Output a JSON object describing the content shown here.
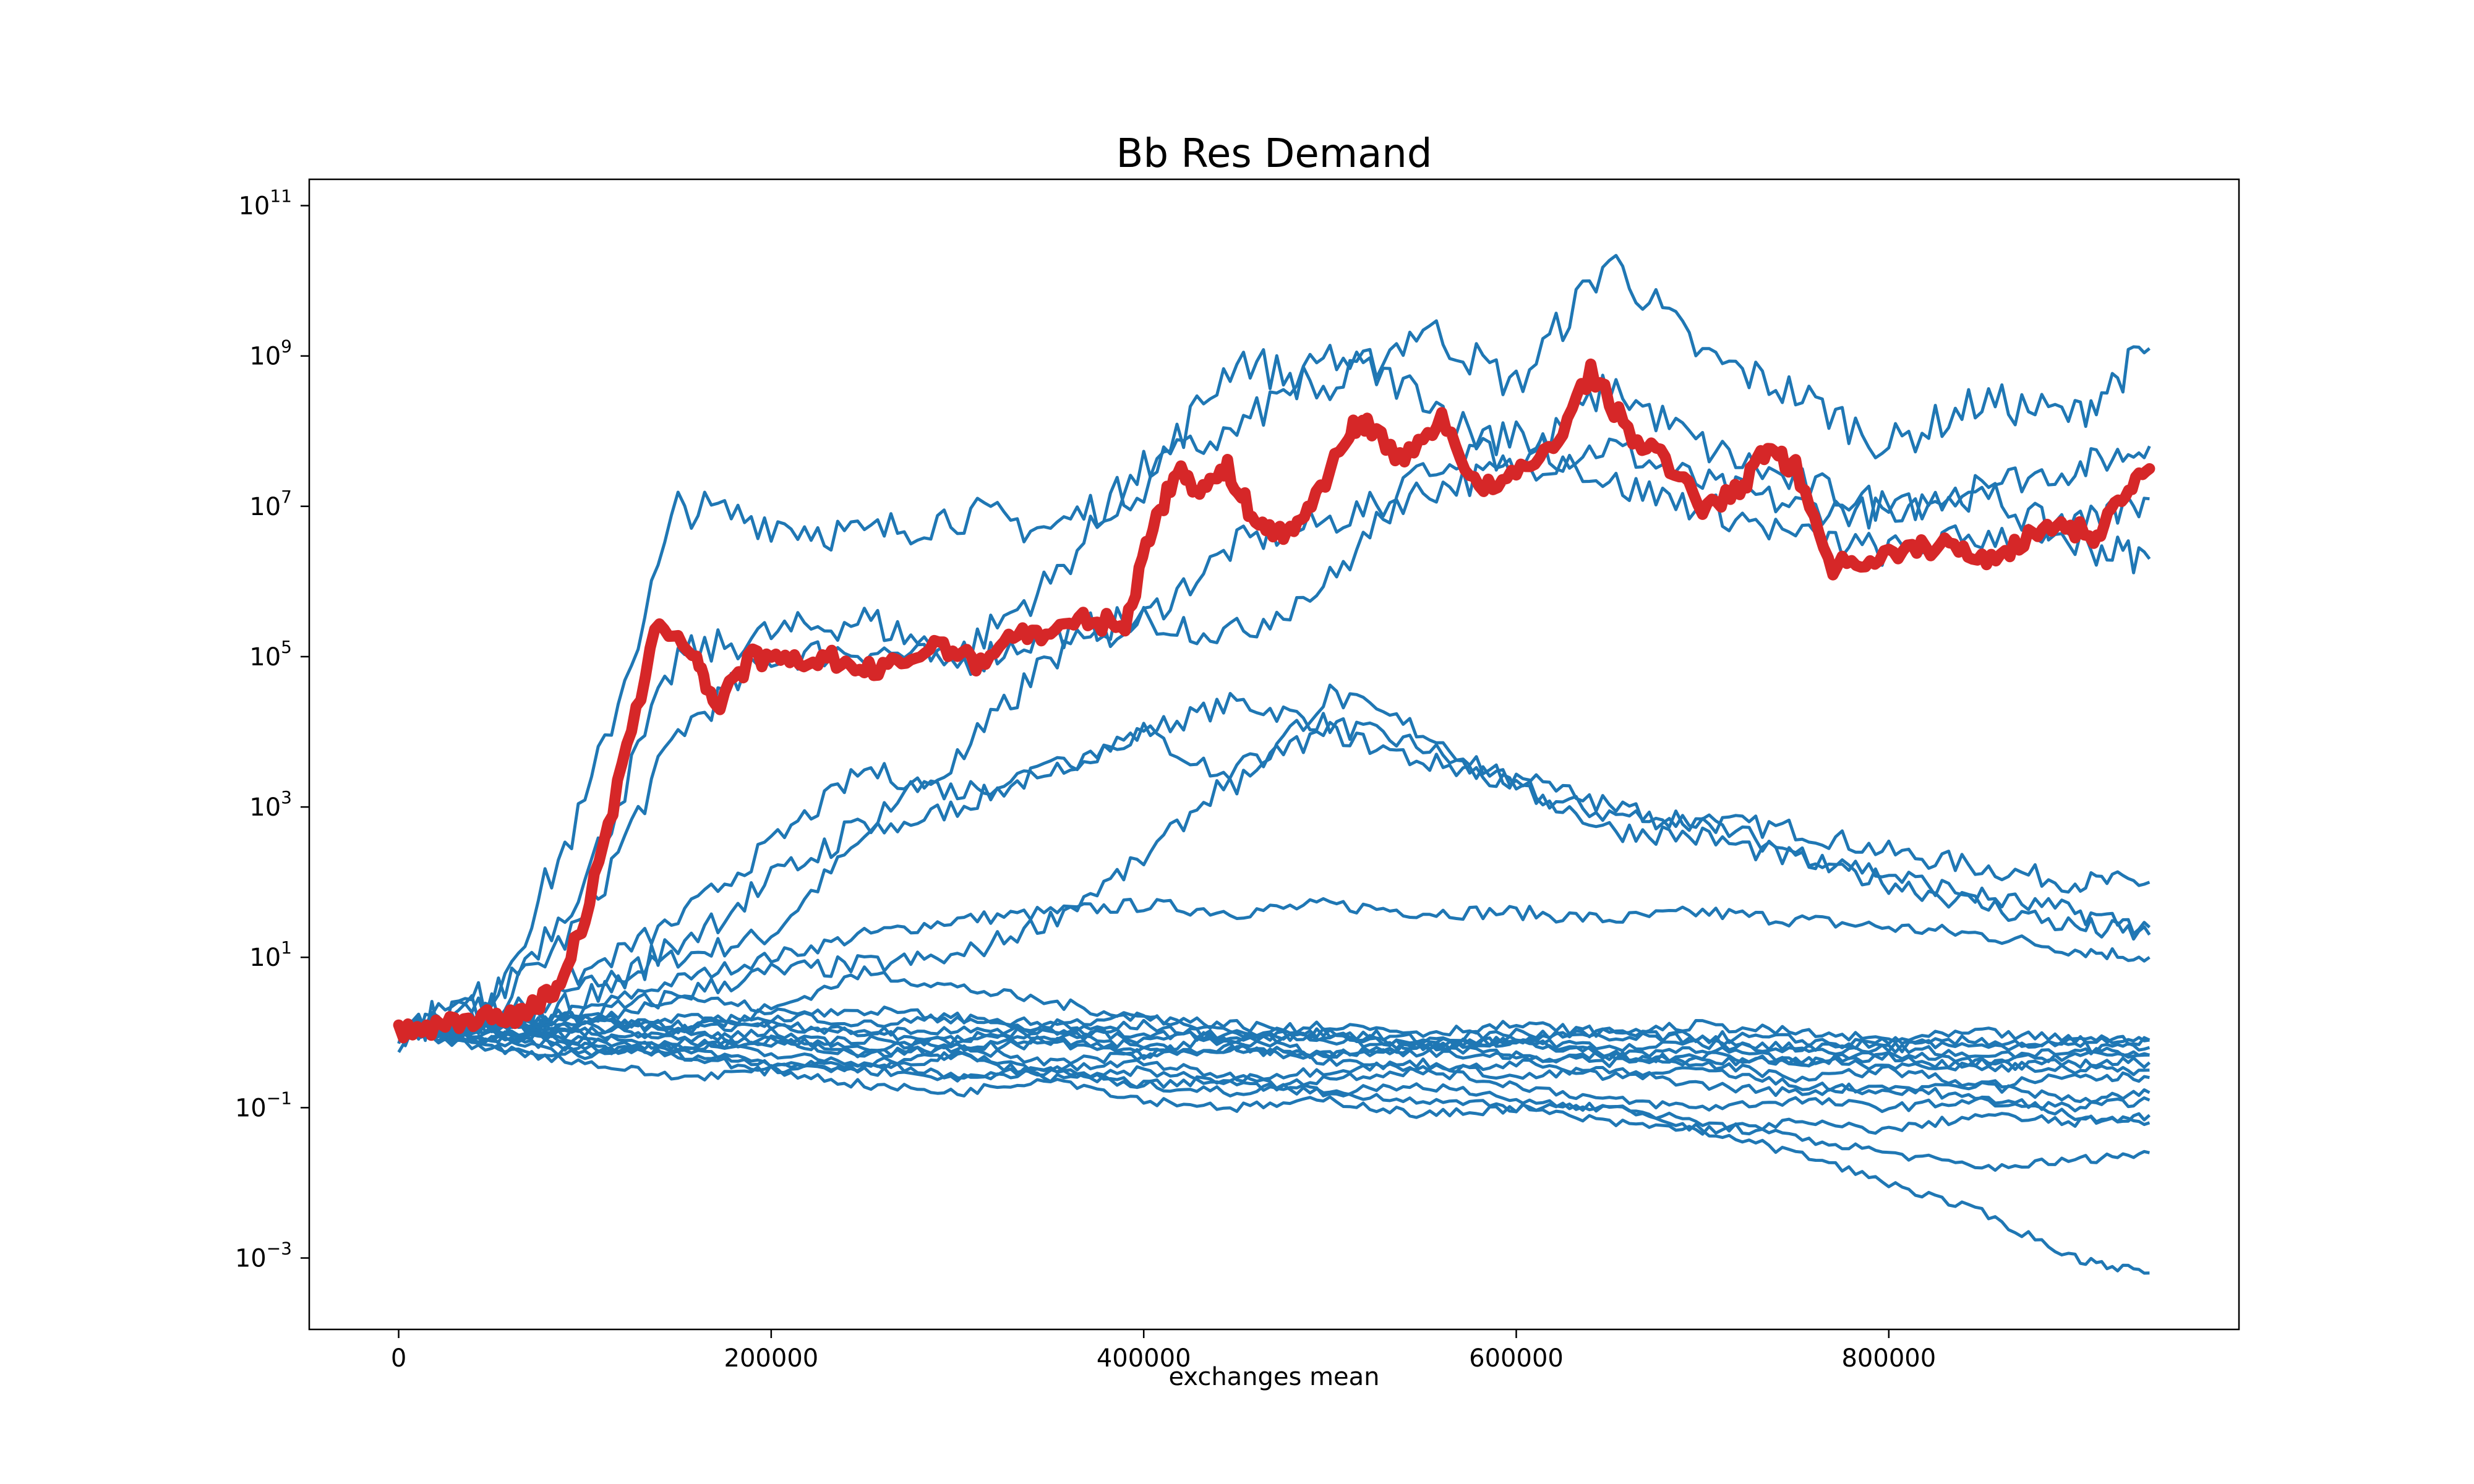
{
  "chart_data": {
    "type": "line",
    "title": "Bb Res Demand",
    "xlabel": "exchanges mean",
    "ylabel": "",
    "yscale": "log",
    "grid": false,
    "legend": "none",
    "xlim": [
      -48000,
      988000
    ],
    "ylim_log10": [
      -3.95,
      11.35
    ],
    "x_ticks": [
      0,
      200000,
      400000,
      600000,
      800000
    ],
    "x_tick_labels": [
      "0",
      "200000",
      "400000",
      "600000",
      "800000"
    ],
    "y_ticks_log10": [
      -3,
      -1,
      1,
      3,
      5,
      7,
      9,
      11
    ],
    "y_tick_labels": [
      {
        "base": "10",
        "exp": "−3"
      },
      {
        "base": "10",
        "exp": "−1"
      },
      {
        "base": "10",
        "exp": "1"
      },
      {
        "base": "10",
        "exp": "3"
      },
      {
        "base": "10",
        "exp": "5"
      },
      {
        "base": "10",
        "exp": "7"
      },
      {
        "base": "10",
        "exp": "9"
      },
      {
        "base": "10",
        "exp": "11"
      }
    ],
    "colors": {
      "series": "#1f77b4",
      "highlight": "#d62728",
      "axes": "#000000"
    },
    "series_x": [
      0,
      50000,
      100000,
      150000,
      200000,
      250000,
      300000,
      350000,
      400000,
      450000,
      500000,
      550000,
      600000,
      650000,
      700000,
      750000,
      800000,
      850000,
      900000,
      940000
    ],
    "series": [
      {
        "log10": [
          0,
          0.1,
          0.6,
          1.0,
          1.3,
          2.6,
          3.0,
          3.5,
          4.0,
          4.4,
          4.1,
          3.8,
          3.2,
          2.9,
          2.8,
          2.7,
          2.4,
          2.2,
          2.0,
          2.0
        ]
      },
      {
        "log10": [
          0,
          0.1,
          0.3,
          0.7,
          1.0,
          1.3,
          1.5,
          1.6,
          1.7,
          1.6,
          1.7,
          1.6,
          1.6,
          1.5,
          1.6,
          1.5,
          1.4,
          1.3,
          1.1,
          1.0
        ]
      },
      {
        "log10": [
          0,
          0.3,
          1.5,
          4.0,
          5.0,
          5.1,
          4.9,
          5.3,
          5.5,
          6.5,
          6.8,
          7.2,
          7.5,
          7.8,
          7.3,
          7.0,
          6.9,
          7.3,
          7.5,
          7.8
        ]
      },
      {
        "log10": [
          0,
          0.5,
          3.0,
          7.0,
          6.8,
          6.6,
          6.9,
          6.7,
          7.3,
          9.0,
          8.5,
          9.4,
          8.6,
          10.3,
          9.0,
          8.5,
          7.8,
          8.4,
          8.2,
          9.1
        ]
      },
      {
        "log10": [
          0,
          0.4,
          2.0,
          5.0,
          5.3,
          5.5,
          5.0,
          6.0,
          7.5,
          8.0,
          9.0,
          8.5,
          7.5,
          8.6,
          7.8,
          7.3,
          7.0,
          7.2,
          6.5,
          6.3
        ]
      },
      {
        "log10": [
          0,
          0.2,
          0.8,
          1.5,
          2.5,
          3.5,
          3.2,
          3.5,
          4.0,
          3.3,
          4.5,
          4.0,
          3.3,
          2.7,
          2.6,
          2.3,
          2.0,
          1.7,
          1.4,
          1.3
        ]
      },
      {
        "log10": [
          0,
          0.1,
          0.2,
          0.5,
          0.8,
          0.9,
          1.0,
          1.5,
          2.3,
          3.5,
          4.0,
          3.6,
          3.4,
          3.0,
          2.8,
          2.4,
          2.1,
          1.8,
          1.6,
          1.4
        ]
      },
      {
        "log10": [
          0,
          0.1,
          0.4,
          1.2,
          2.0,
          2.8,
          3.6,
          5.0,
          5.5,
          5.3,
          6.0,
          7.5,
          8.0,
          7.3,
          7.0,
          6.6,
          6.4,
          6.6,
          6.7,
          7.1
        ]
      },
      {
        "log10": [
          0,
          0.05,
          0.1,
          0.5,
          0.3,
          0.8,
          0.6,
          0.4,
          0.2,
          0.1,
          0.0,
          -0.1,
          0.0,
          -0.1,
          -0.05,
          -0.1,
          -0.2,
          -0.1,
          -0.2,
          -0.2
        ]
      },
      {
        "log10": [
          0,
          -0.1,
          -0.2,
          -0.3,
          -0.4,
          -0.5,
          -0.6,
          -0.5,
          -0.7,
          -0.8,
          -0.6,
          -0.5,
          -0.7,
          -0.9,
          -1.0,
          -0.9,
          -1.0,
          -0.9,
          -1.0,
          -0.9
        ]
      },
      {
        "log10": [
          0,
          0.1,
          0.2,
          0.0,
          0.3,
          0.1,
          0.2,
          0.0,
          0.1,
          -0.1,
          0.0,
          -0.2,
          -0.1,
          -0.3,
          -0.2,
          -0.4,
          -0.3,
          -0.5,
          -0.4,
          -0.4
        ]
      },
      {
        "log10": [
          0,
          -0.2,
          -0.3,
          -0.1,
          -0.3,
          -0.4,
          -0.3,
          -0.5,
          -0.4,
          -0.6,
          -0.5,
          -0.4,
          -0.6,
          -0.5,
          -0.7,
          -0.8,
          -0.7,
          -0.9,
          -1.1,
          -1.2
        ]
      },
      {
        "log10": [
          0,
          0.0,
          -0.1,
          -0.2,
          -0.1,
          -0.3,
          -0.2,
          -0.1,
          -0.3,
          -0.2,
          -0.3,
          -0.2,
          -0.3,
          -0.4,
          -0.3,
          -0.4,
          -0.3,
          -0.4,
          -0.3,
          -0.3
        ]
      },
      {
        "log10": [
          0,
          -0.1,
          0.1,
          -0.1,
          0.0,
          -0.2,
          -0.1,
          0.1,
          -0.1,
          0.0,
          -0.1,
          -0.2,
          -0.1,
          0.0,
          -0.1,
          -0.2,
          -0.1,
          -0.2,
          -0.1,
          -0.1
        ]
      },
      {
        "log10": [
          0,
          0.1,
          0.2,
          0.1,
          0.2,
          0.3,
          0.2,
          0.1,
          0.2,
          0.0,
          0.1,
          0.0,
          0.1,
          0.0,
          0.1,
          0.0,
          -0.1,
          0.0,
          -0.1,
          -0.1
        ]
      },
      {
        "log10": [
          0,
          -0.2,
          -0.4,
          -0.6,
          -0.5,
          -0.7,
          -0.8,
          -0.6,
          -0.9,
          -1.0,
          -0.9,
          -1.1,
          -1.0,
          -1.2,
          -1.3,
          -1.2,
          -1.3,
          -1.1,
          -1.2,
          -1.1
        ]
      },
      {
        "log10": [
          0,
          -0.1,
          -0.3,
          -0.2,
          -0.4,
          -0.5,
          -0.3,
          -0.6,
          -0.5,
          -0.7,
          -0.8,
          -0.9,
          -1.0,
          -1.0,
          -1.3,
          -1.6,
          -2.0,
          -2.4,
          -3.0,
          -3.2
        ]
      },
      {
        "log10": [
          0,
          0.0,
          -0.2,
          -0.3,
          -0.5,
          -0.4,
          -0.6,
          -0.5,
          -0.7,
          -0.6,
          -0.8,
          -0.7,
          -0.9,
          -1.0,
          -1.2,
          -1.4,
          -1.6,
          -1.8,
          -1.7,
          -1.6
        ]
      },
      {
        "log10": [
          0,
          0.1,
          0.0,
          0.2,
          0.1,
          0.0,
          -0.1,
          0.0,
          -0.2,
          -0.1,
          -0.3,
          -0.2,
          -0.1,
          -0.3,
          -0.4,
          -0.6,
          -0.5,
          -0.7,
          -0.6,
          -0.6
        ]
      },
      {
        "log10": [
          0,
          -0.1,
          0.0,
          -0.2,
          -0.1,
          -0.3,
          -0.2,
          -0.4,
          -0.3,
          -0.2,
          -0.4,
          -0.5,
          -0.4,
          -0.6,
          -0.5,
          -0.7,
          -0.8,
          -0.7,
          -0.9,
          -0.8
        ]
      },
      {
        "log10": [
          0,
          0.05,
          -0.1,
          0.0,
          -0.15,
          -0.1,
          -0.2,
          -0.15,
          -0.25,
          -0.2,
          -0.3,
          -0.25,
          -0.35,
          -0.3,
          -0.4,
          -0.35,
          -0.45,
          -0.4,
          -0.5,
          -0.5
        ]
      },
      {
        "log10": [
          0,
          0.1,
          0.15,
          0.05,
          0.1,
          0.0,
          0.05,
          -0.05,
          0.0,
          -0.1,
          -0.05,
          -0.15,
          -0.1,
          -0.2,
          -0.15,
          -0.25,
          -0.2,
          -0.3,
          -0.25,
          -0.3
        ]
      }
    ],
    "highlight": {
      "x": [
        0,
        20000,
        40000,
        60000,
        70000,
        85000,
        100000,
        120000,
        140000,
        160000,
        170000,
        190000,
        210000,
        230000,
        250000,
        270000,
        290000,
        310000,
        330000,
        350000,
        370000,
        390000,
        405000,
        420000,
        430000,
        445000,
        460000,
        475000,
        490000,
        510000,
        520000,
        540000,
        560000,
        580000,
        600000,
        620000,
        640000,
        660000,
        680000,
        700000,
        720000,
        735000,
        750000,
        770000,
        790000,
        810000,
        830000,
        850000,
        870000,
        890000,
        910000,
        925000,
        940000
      ],
      "log10": [
        0,
        0.1,
        0.2,
        0.2,
        0.3,
        0.6,
        1.5,
        3.5,
        5.5,
        5.0,
        4.3,
        5.0,
        4.9,
        5.0,
        4.8,
        4.9,
        5.2,
        4.9,
        5.3,
        5.3,
        5.5,
        5.4,
        6.8,
        7.5,
        7.2,
        7.5,
        6.8,
        6.6,
        7.0,
        8.0,
        8.1,
        7.6,
        8.2,
        7.2,
        7.4,
        7.8,
        8.8,
        8.0,
        7.6,
        7.0,
        7.2,
        7.8,
        7.5,
        6.2,
        6.3,
        6.4,
        6.5,
        6.3,
        6.5,
        6.8,
        6.6,
        7.1,
        7.5
      ]
    }
  }
}
